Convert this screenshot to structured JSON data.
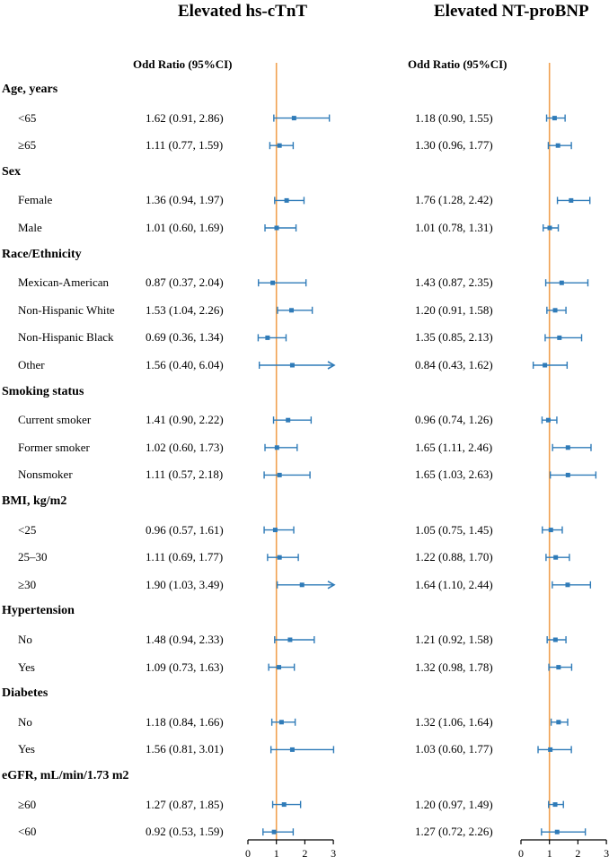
{
  "colors": {
    "ci": "#2f7bb8",
    "ref": "#f0a050",
    "axis": "#000000"
  },
  "chart_data": {
    "type": "forest",
    "reference_line": 1,
    "xlim": [
      0,
      3
    ],
    "xticks": [
      "0",
      "1",
      "2",
      "3"
    ],
    "panels": [
      {
        "title": "Elevated hs-cTnT",
        "column_header": "Odd Ratio (95%CI)"
      },
      {
        "title": "Elevated  NT-proBNP",
        "column_header": "Odd Ratio (95%CI)"
      }
    ],
    "groups": [
      {
        "label": "Age, years",
        "rows": [
          {
            "label": "<65",
            "est": [
              1.62,
              1.18
            ],
            "lo": [
              0.91,
              0.9
            ],
            "hi": [
              2.86,
              1.55
            ],
            "text": [
              "1.62 (0.91, 2.86)",
              "1.18 (0.90, 1.55)"
            ]
          },
          {
            "label": "≥65",
            "est": [
              1.11,
              1.3
            ],
            "lo": [
              0.77,
              0.96
            ],
            "hi": [
              1.59,
              1.77
            ],
            "text": [
              "1.11 (0.77, 1.59)",
              "1.30 (0.96, 1.77)"
            ]
          }
        ]
      },
      {
        "label": "Sex",
        "rows": [
          {
            "label": "Female",
            "est": [
              1.36,
              1.76
            ],
            "lo": [
              0.94,
              1.28
            ],
            "hi": [
              1.97,
              2.42
            ],
            "text": [
              "1.36 (0.94, 1.97)",
              "1.76 (1.28, 2.42)"
            ]
          },
          {
            "label": "Male",
            "est": [
              1.01,
              1.01
            ],
            "lo": [
              0.6,
              0.78
            ],
            "hi": [
              1.69,
              1.31
            ],
            "text": [
              "1.01 (0.60, 1.69)",
              "1.01 (0.78, 1.31)"
            ]
          }
        ]
      },
      {
        "label": "Race/Ethnicity",
        "rows": [
          {
            "label": "Mexican-American",
            "est": [
              0.87,
              1.43
            ],
            "lo": [
              0.37,
              0.87
            ],
            "hi": [
              2.04,
              2.35
            ],
            "text": [
              "0.87 (0.37, 2.04)",
              "1.43 (0.87, 2.35)"
            ]
          },
          {
            "label": "Non-Hispanic White",
            "est": [
              1.53,
              1.2
            ],
            "lo": [
              1.04,
              0.91
            ],
            "hi": [
              2.26,
              1.58
            ],
            "text": [
              "1.53 (1.04, 2.26)",
              "1.20 (0.91, 1.58)"
            ]
          },
          {
            "label": "Non-Hispanic Black",
            "est": [
              0.69,
              1.35
            ],
            "lo": [
              0.36,
              0.85
            ],
            "hi": [
              1.34,
              2.13
            ],
            "text": [
              "0.69 (0.36, 1.34)",
              "1.35 (0.85, 2.13)"
            ]
          },
          {
            "label": "Other",
            "est": [
              1.56,
              0.84
            ],
            "lo": [
              0.4,
              0.43
            ],
            "hi": [
              6.04,
              1.62
            ],
            "text": [
              "1.56 (0.40, 6.04)",
              "0.84 (0.43, 1.62)"
            ]
          }
        ]
      },
      {
        "label": "Smoking status",
        "rows": [
          {
            "label": "Current smoker",
            "est": [
              1.41,
              0.96
            ],
            "lo": [
              0.9,
              0.74
            ],
            "hi": [
              2.22,
              1.26
            ],
            "text": [
              "1.41 (0.90, 2.22)",
              "0.96 (0.74, 1.26)"
            ]
          },
          {
            "label": "Former smoker",
            "est": [
              1.02,
              1.65
            ],
            "lo": [
              0.6,
              1.11
            ],
            "hi": [
              1.73,
              2.46
            ],
            "text": [
              "1.02 (0.60, 1.73)",
              "1.65 (1.11, 2.46)"
            ]
          },
          {
            "label": "Nonsmoker",
            "est": [
              1.11,
              1.65
            ],
            "lo": [
              0.57,
              1.03
            ],
            "hi": [
              2.18,
              2.63
            ],
            "text": [
              "1.11 (0.57, 2.18)",
              "1.65 (1.03, 2.63)"
            ]
          }
        ]
      },
      {
        "label": "BMI, kg/m2",
        "rows": [
          {
            "label": "<25",
            "est": [
              0.96,
              1.05
            ],
            "lo": [
              0.57,
              0.75
            ],
            "hi": [
              1.61,
              1.45
            ],
            "text": [
              "0.96 (0.57, 1.61)",
              "1.05 (0.75, 1.45)"
            ]
          },
          {
            "label": "25–30",
            "est": [
              1.11,
              1.22
            ],
            "lo": [
              0.69,
              0.88
            ],
            "hi": [
              1.77,
              1.7
            ],
            "text": [
              "1.11 (0.69, 1.77)",
              "1.22 (0.88, 1.70)"
            ]
          },
          {
            "label": "≥30",
            "est": [
              1.9,
              1.64
            ],
            "lo": [
              1.03,
              1.1
            ],
            "hi": [
              3.49,
              2.44
            ],
            "text": [
              "1.90 (1.03, 3.49)",
              "1.64 (1.10, 2.44)"
            ]
          }
        ]
      },
      {
        "label": "Hypertension",
        "rows": [
          {
            "label": "No",
            "est": [
              1.48,
              1.21
            ],
            "lo": [
              0.94,
              0.92
            ],
            "hi": [
              2.33,
              1.58
            ],
            "text": [
              "1.48 (0.94, 2.33)",
              "1.21 (0.92, 1.58)"
            ]
          },
          {
            "label": "Yes",
            "est": [
              1.09,
              1.32
            ],
            "lo": [
              0.73,
              0.98
            ],
            "hi": [
              1.63,
              1.78
            ],
            "text": [
              "1.09 (0.73, 1.63)",
              "1.32 (0.98, 1.78)"
            ]
          }
        ]
      },
      {
        "label": "Diabetes",
        "rows": [
          {
            "label": "No",
            "est": [
              1.18,
              1.32
            ],
            "lo": [
              0.84,
              1.06
            ],
            "hi": [
              1.66,
              1.64
            ],
            "text": [
              "1.18 (0.84, 1.66)",
              "1.32 (1.06, 1.64)"
            ]
          },
          {
            "label": "Yes",
            "est": [
              1.56,
              1.03
            ],
            "lo": [
              0.81,
              0.6
            ],
            "hi": [
              3.01,
              1.77
            ],
            "text": [
              "1.56 (0.81, 3.01)",
              "1.03 (0.60, 1.77)"
            ]
          }
        ]
      },
      {
        "label": "eGFR, mL/min/1.73 m2",
        "rows": [
          {
            "label": "≥60",
            "est": [
              1.27,
              1.2
            ],
            "lo": [
              0.87,
              0.97
            ],
            "hi": [
              1.85,
              1.49
            ],
            "text": [
              "1.27 (0.87, 1.85)",
              "1.20 (0.97, 1.49)"
            ]
          },
          {
            "label": "<60",
            "est": [
              0.92,
              1.27
            ],
            "lo": [
              0.53,
              0.72
            ],
            "hi": [
              1.59,
              2.26
            ],
            "text": [
              "0.92 (0.53, 1.59)",
              "1.27 (0.72, 2.26)"
            ]
          }
        ]
      }
    ]
  }
}
